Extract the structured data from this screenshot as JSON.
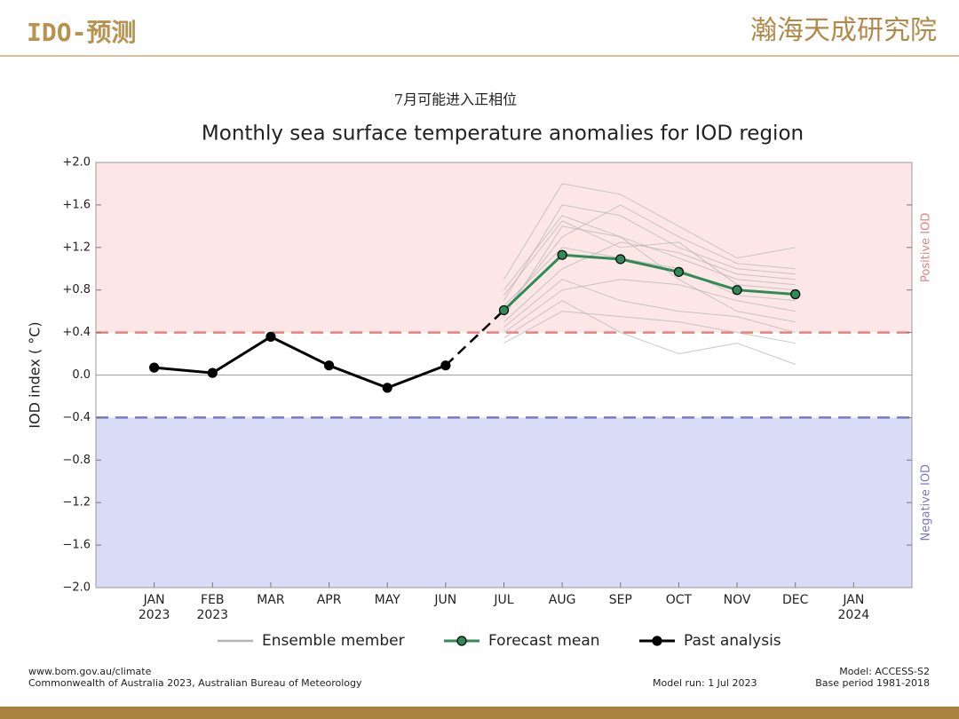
{
  "header": {
    "title": "IDO-预测",
    "logo": "瀚海天成研究院"
  },
  "chart_data": {
    "type": "line",
    "subtitle": "7月可能进入正相位",
    "title": "Monthly sea surface temperature anomalies for IOD region",
    "y_label": "IOD index ( °C)",
    "positive_label": "Positive IOD",
    "negative_label": "Negative IOD",
    "positive_threshold": 0.4,
    "negative_threshold": -0.4,
    "positive_color": "#fde6e6",
    "negative_color": "#d9dcf6",
    "positive_line_color": "#e88080",
    "negative_line_color": "#7878c8",
    "categories": [
      "JAN\n2023",
      "FEB\n2023",
      "MAR",
      "APR",
      "MAY",
      "JUN",
      "JUL",
      "AUG",
      "SEP",
      "OCT",
      "NOV",
      "DEC",
      "JAN\n2024"
    ],
    "ylim": [
      -2.0,
      2.0
    ],
    "yticks": [
      {
        "value": 2.0,
        "label": "+2.0"
      },
      {
        "value": 1.6,
        "label": "+1.6"
      },
      {
        "value": 1.2,
        "label": "+1.2"
      },
      {
        "value": 0.8,
        "label": "+0.8"
      },
      {
        "value": 0.4,
        "label": "+0.4"
      },
      {
        "value": 0,
        "label": "0.0"
      },
      {
        "value": -0.4,
        "label": "−0.4"
      },
      {
        "value": -0.8,
        "label": "−0.8"
      },
      {
        "value": -1.2,
        "label": "−1.2"
      },
      {
        "value": -1.6,
        "label": "−1.6"
      },
      {
        "value": -2.0,
        "label": "−2.0"
      }
    ],
    "series": [
      {
        "name": "Ensemble member",
        "color": "#b4b4b4",
        "members": [
          [
            null,
            null,
            null,
            null,
            null,
            null,
            0.55,
            1.4,
            1.3,
            1.1,
            0.9,
            0.85,
            null
          ],
          [
            null,
            null,
            null,
            null,
            null,
            null,
            0.7,
            1.6,
            1.5,
            1.2,
            1.0,
            0.95,
            null
          ],
          [
            null,
            null,
            null,
            null,
            null,
            null,
            0.4,
            0.8,
            0.9,
            0.85,
            0.7,
            0.6,
            null
          ],
          [
            null,
            null,
            null,
            null,
            null,
            null,
            0.9,
            1.8,
            1.7,
            1.4,
            1.1,
            1.2,
            null
          ],
          [
            null,
            null,
            null,
            null,
            null,
            null,
            0.3,
            0.6,
            0.55,
            0.5,
            0.4,
            0.3,
            null
          ],
          [
            null,
            null,
            null,
            null,
            null,
            null,
            0.65,
            1.2,
            1.1,
            1.0,
            0.75,
            0.7,
            null
          ],
          [
            null,
            null,
            null,
            null,
            null,
            null,
            0.5,
            1.0,
            1.25,
            1.15,
            0.95,
            0.9,
            null
          ],
          [
            null,
            null,
            null,
            null,
            null,
            null,
            0.8,
            1.5,
            1.3,
            0.9,
            0.6,
            0.5,
            null
          ],
          [
            null,
            null,
            null,
            null,
            null,
            null,
            0.45,
            0.9,
            0.7,
            0.6,
            0.55,
            0.4,
            null
          ],
          [
            null,
            null,
            null,
            null,
            null,
            null,
            0.6,
            1.3,
            1.6,
            1.3,
            1.05,
            1.0,
            null
          ],
          [
            null,
            null,
            null,
            null,
            null,
            null,
            0.35,
            0.7,
            0.4,
            0.2,
            0.3,
            0.1,
            null
          ],
          [
            null,
            null,
            null,
            null,
            null,
            null,
            0.75,
            1.45,
            1.2,
            1.25,
            0.85,
            0.8,
            null
          ]
        ]
      },
      {
        "name": "Forecast mean",
        "color": "#2e8b57",
        "values": [
          null,
          null,
          null,
          null,
          null,
          null,
          0.61,
          1.13,
          1.09,
          0.97,
          0.8,
          0.76,
          null
        ]
      },
      {
        "name": "Past analysis",
        "color": "#000000",
        "values": [
          0.07,
          0.02,
          0.36,
          0.09,
          -0.12,
          0.09,
          null,
          null,
          null,
          null,
          null,
          null,
          null
        ]
      }
    ]
  },
  "footer": {
    "source": "www.bom.gov.au/climate",
    "copyright": "Commonwealth of Australia 2023, Australian Bureau of Meteorology",
    "model": "Model: ACCESS-S2",
    "model_run": "Model run: 1 Jul 2023",
    "base_period": "Base period 1981-2018"
  }
}
